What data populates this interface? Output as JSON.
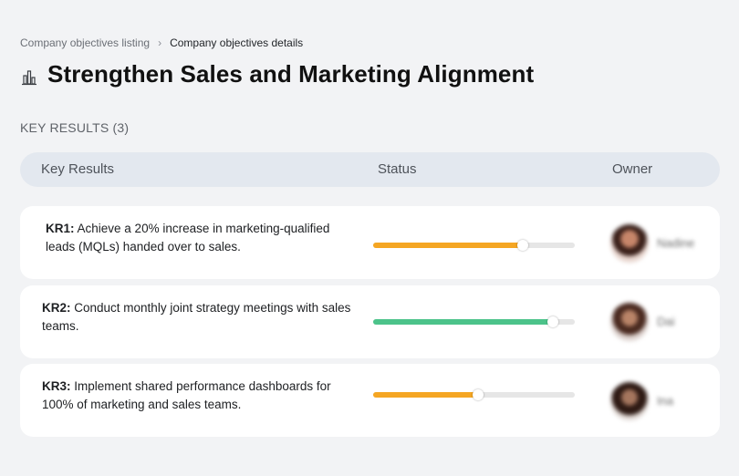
{
  "breadcrumb": {
    "parent": "Company objectives listing",
    "separator": "›",
    "current": "Company objectives details"
  },
  "objective": {
    "icon": "building-chart-icon",
    "title": "Strengthen Sales and Marketing Alignment"
  },
  "key_results_section": {
    "label": "KEY RESULTS (3)"
  },
  "table": {
    "headers": {
      "key_results": "Key Results",
      "status": "Status",
      "owner": "Owner"
    },
    "rows": [
      {
        "code": "KR1:",
        "text": " Achieve a 20% increase in marketing-qualified leads (MQLs) handed over to sales.",
        "progress": 0.74,
        "progress_color": "#f5a623",
        "owner": "Nadine"
      },
      {
        "code": "KR2:",
        "text": " Conduct monthly joint strategy meetings with sales teams.",
        "progress": 0.89,
        "progress_color": "#4cc38a",
        "owner": "Dai"
      },
      {
        "code": "KR3:",
        "text": " Implement shared performance dashboards for 100% of marketing and sales teams.",
        "progress": 0.52,
        "progress_color": "#f5a623",
        "owner": "Ina"
      }
    ]
  }
}
